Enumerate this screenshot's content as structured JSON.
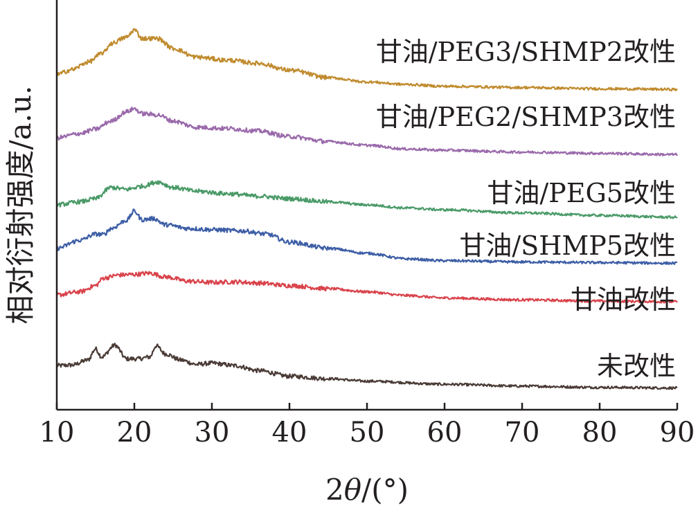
{
  "chart_data": {
    "type": "line",
    "xlabel_prefix": "2",
    "xlabel_theta": "θ",
    "xlabel_suffix": "/(°)",
    "ylabel": "相对衍射强度/a.u.",
    "xlim": [
      10,
      90
    ],
    "x_ticks": [
      "10",
      "20",
      "30",
      "40",
      "50",
      "60",
      "70",
      "80",
      "90"
    ],
    "grid": false,
    "y_ticks_shown": false,
    "series": [
      {
        "name": "未改性",
        "color": "#4a3b36",
        "points": [
          [
            10,
            0.41
          ],
          [
            12,
            0.42
          ],
          [
            14,
            0.5
          ],
          [
            15,
            0.68
          ],
          [
            15.8,
            0.55
          ],
          [
            17.5,
            0.74
          ],
          [
            19,
            0.52
          ],
          [
            20.5,
            0.52
          ],
          [
            22,
            0.55
          ],
          [
            22.8,
            0.73
          ],
          [
            24,
            0.6
          ],
          [
            26,
            0.5
          ],
          [
            28,
            0.43
          ],
          [
            30,
            0.45
          ],
          [
            33,
            0.41
          ],
          [
            36,
            0.33
          ],
          [
            40,
            0.24
          ],
          [
            45,
            0.2
          ],
          [
            50,
            0.16
          ],
          [
            60,
            0.11
          ],
          [
            70,
            0.08
          ],
          [
            80,
            0.06
          ],
          [
            90,
            0.05
          ]
        ]
      },
      {
        "name": "甘油改性",
        "color": "#d9434b",
        "points": [
          [
            10,
            1.55
          ],
          [
            13,
            1.6
          ],
          [
            15,
            1.7
          ],
          [
            16,
            1.82
          ],
          [
            18,
            1.87
          ],
          [
            20,
            1.88
          ],
          [
            22,
            1.9
          ],
          [
            24,
            1.84
          ],
          [
            27,
            1.77
          ],
          [
            30,
            1.75
          ],
          [
            33,
            1.76
          ],
          [
            36,
            1.74
          ],
          [
            40,
            1.7
          ],
          [
            45,
            1.65
          ],
          [
            50,
            1.6
          ],
          [
            55,
            1.54
          ],
          [
            60,
            1.5
          ],
          [
            70,
            1.47
          ],
          [
            80,
            1.45
          ],
          [
            90,
            1.44
          ]
        ]
      },
      {
        "name": "甘油/SHMP5改性",
        "color": "#3d5ea6",
        "points": [
          [
            10,
            2.3
          ],
          [
            13,
            2.43
          ],
          [
            15,
            2.53
          ],
          [
            16,
            2.52
          ],
          [
            17,
            2.62
          ],
          [
            19,
            2.75
          ],
          [
            20,
            2.9
          ],
          [
            21,
            2.76
          ],
          [
            22.5,
            2.78
          ],
          [
            24,
            2.68
          ],
          [
            27,
            2.62
          ],
          [
            30,
            2.6
          ],
          [
            34,
            2.58
          ],
          [
            37,
            2.53
          ],
          [
            40,
            2.4
          ],
          [
            45,
            2.3
          ],
          [
            50,
            2.22
          ],
          [
            55,
            2.13
          ],
          [
            60,
            2.1
          ],
          [
            70,
            2.08
          ],
          [
            80,
            2.07
          ],
          [
            90,
            2.06
          ]
        ]
      },
      {
        "name": "甘油/PEG5改性",
        "color": "#4a9a68",
        "points": [
          [
            10,
            3.0
          ],
          [
            13,
            3.05
          ],
          [
            15,
            3.1
          ],
          [
            17,
            3.28
          ],
          [
            19,
            3.25
          ],
          [
            21,
            3.3
          ],
          [
            23,
            3.37
          ],
          [
            25,
            3.28
          ],
          [
            28,
            3.22
          ],
          [
            32,
            3.18
          ],
          [
            36,
            3.14
          ],
          [
            40,
            3.1
          ],
          [
            45,
            3.05
          ],
          [
            50,
            3.0
          ],
          [
            55,
            2.95
          ],
          [
            60,
            2.92
          ],
          [
            70,
            2.87
          ],
          [
            80,
            2.83
          ],
          [
            90,
            2.8
          ]
        ]
      },
      {
        "name": "甘油/PEG2/SHMP3改性",
        "color": "#9a6aab",
        "points": [
          [
            10,
            4.08
          ],
          [
            13,
            4.15
          ],
          [
            15,
            4.22
          ],
          [
            17,
            4.35
          ],
          [
            19,
            4.5
          ],
          [
            20,
            4.55
          ],
          [
            21,
            4.47
          ],
          [
            23,
            4.45
          ],
          [
            25,
            4.35
          ],
          [
            28,
            4.25
          ],
          [
            32,
            4.23
          ],
          [
            36,
            4.19
          ],
          [
            40,
            4.1
          ],
          [
            45,
            4.02
          ],
          [
            50,
            3.96
          ],
          [
            55,
            3.9
          ],
          [
            60,
            3.88
          ],
          [
            70,
            3.85
          ],
          [
            80,
            3.83
          ],
          [
            90,
            3.81
          ]
        ]
      },
      {
        "name": "甘油/PEG3/SHMP2改性",
        "color": "#c08b2e",
        "points": [
          [
            10,
            5.1
          ],
          [
            12,
            5.18
          ],
          [
            14,
            5.3
          ],
          [
            16,
            5.45
          ],
          [
            17,
            5.6
          ],
          [
            19,
            5.7
          ],
          [
            20,
            5.82
          ],
          [
            21,
            5.68
          ],
          [
            23,
            5.68
          ],
          [
            25,
            5.52
          ],
          [
            28,
            5.38
          ],
          [
            32,
            5.33
          ],
          [
            36,
            5.28
          ],
          [
            40,
            5.17
          ],
          [
            45,
            5.05
          ],
          [
            50,
            4.98
          ],
          [
            55,
            4.94
          ],
          [
            60,
            4.91
          ],
          [
            70,
            4.89
          ],
          [
            80,
            4.87
          ],
          [
            90,
            4.86
          ]
        ]
      }
    ]
  }
}
